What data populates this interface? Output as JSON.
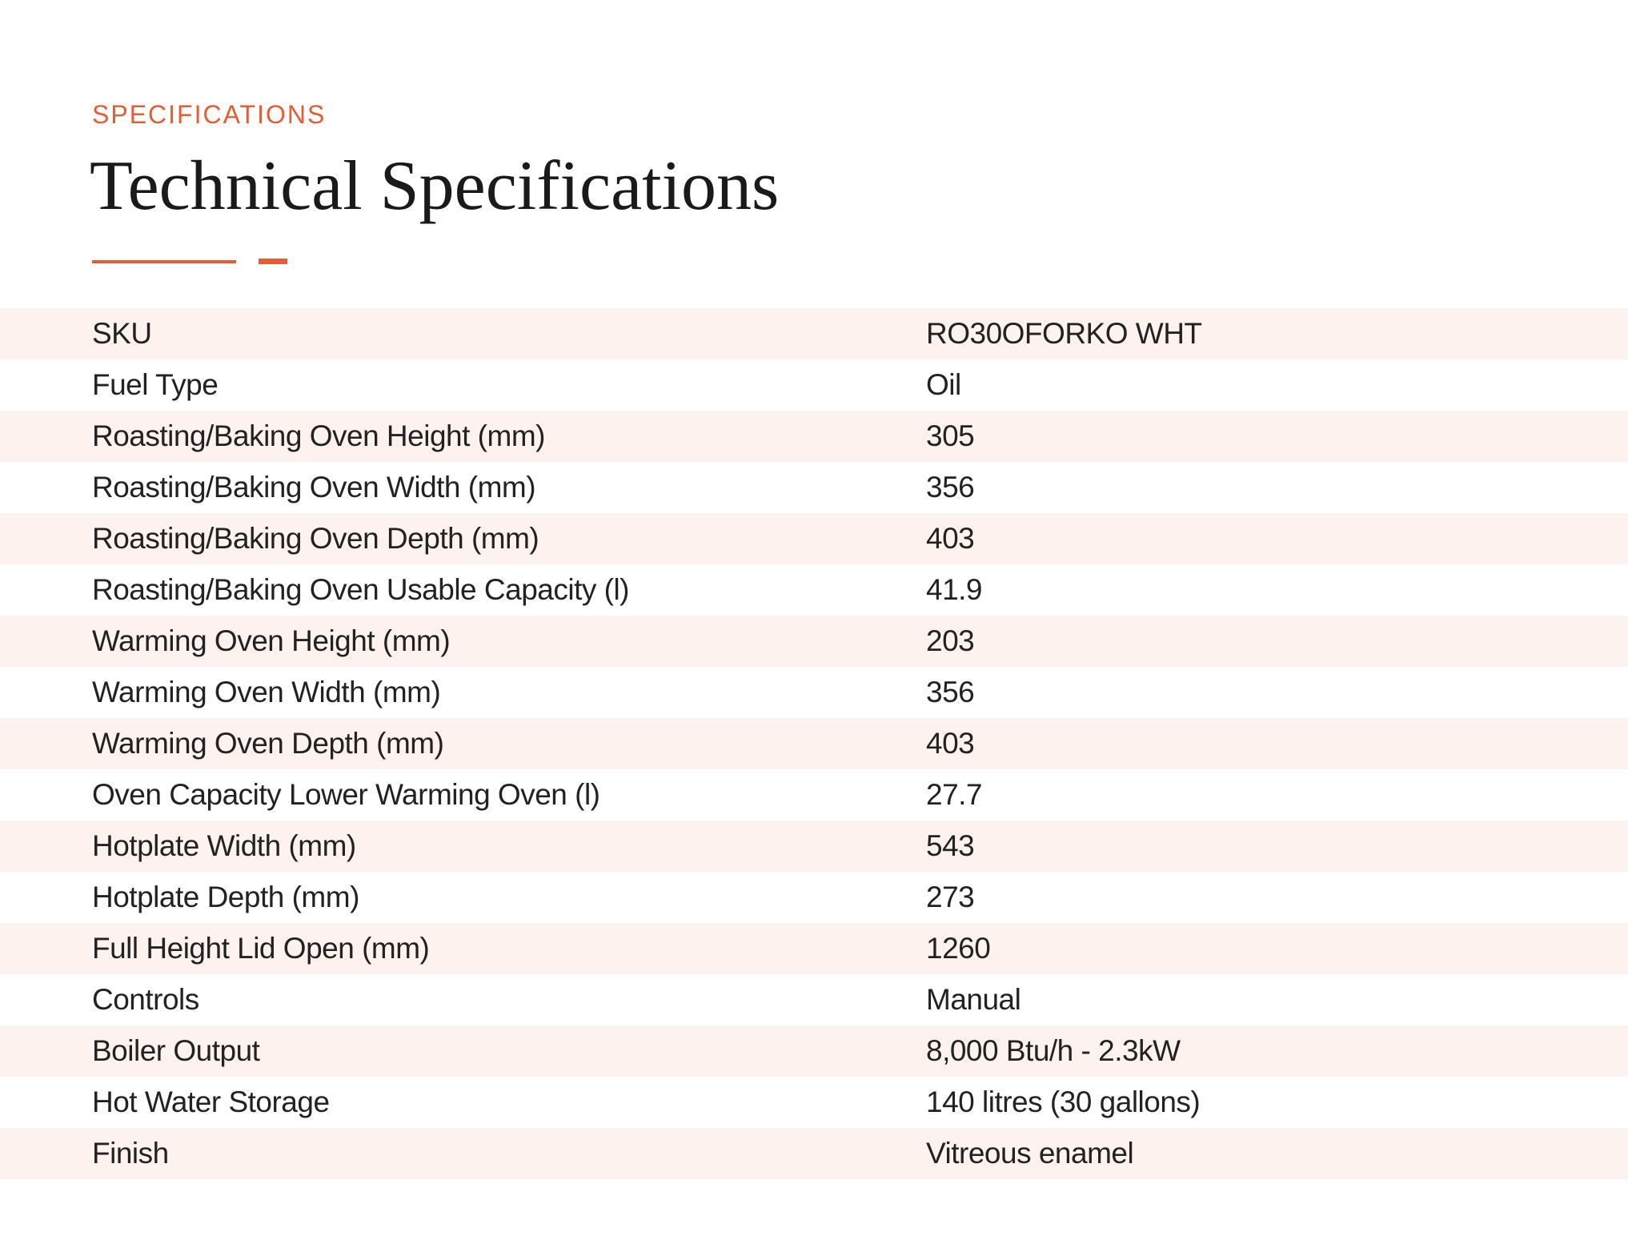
{
  "header": {
    "eyebrow": "SPECIFICATIONS",
    "title": "Technical Specifications"
  },
  "colors": {
    "accent": "#e85c33",
    "stripe": "#fdf2ee",
    "text": "#222222",
    "title": "#1a1a1a",
    "background": "#ffffff"
  },
  "specs": {
    "rows": [
      {
        "label": "SKU",
        "value": "RO30OFORKO WHT"
      },
      {
        "label": "Fuel Type",
        "value": "Oil"
      },
      {
        "label": "Roasting/Baking Oven Height (mm)",
        "value": "305"
      },
      {
        "label": "Roasting/Baking Oven Width (mm)",
        "value": "356"
      },
      {
        "label": "Roasting/Baking Oven Depth (mm)",
        "value": "403"
      },
      {
        "label": "Roasting/Baking Oven Usable Capacity (l)",
        "value": "41.9"
      },
      {
        "label": "Warming Oven Height (mm)",
        "value": "203"
      },
      {
        "label": "Warming Oven Width (mm)",
        "value": "356"
      },
      {
        "label": "Warming Oven Depth (mm)",
        "value": "403"
      },
      {
        "label": "Oven Capacity Lower Warming Oven (l)",
        "value": "27.7"
      },
      {
        "label": "Hotplate Width (mm)",
        "value": "543"
      },
      {
        "label": "Hotplate Depth (mm)",
        "value": "273"
      },
      {
        "label": "Full Height Lid Open (mm)",
        "value": "1260"
      },
      {
        "label": "Controls",
        "value": "Manual"
      },
      {
        "label": "Boiler Output",
        "value": "8,000 Btu/h - 2.3kW"
      },
      {
        "label": "Hot Water Storage",
        "value": "140 litres (30 gallons)"
      },
      {
        "label": "Finish",
        "value": "Vitreous enamel"
      }
    ]
  }
}
